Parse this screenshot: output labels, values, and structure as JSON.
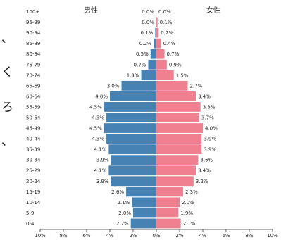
{
  "side_text": [
    "、",
    "く",
    "ろ",
    "、"
  ],
  "chart_data": {
    "type": "bar",
    "orientation": "horizontal",
    "categories": [
      "100+",
      "95-99",
      "90-94",
      "85-89",
      "80-84",
      "75-79",
      "70-74",
      "65-69",
      "60-64",
      "55-59",
      "50-54",
      "45-49",
      "40-44",
      "35-39",
      "30-34",
      "25-29",
      "20-24",
      "15-19",
      "10-14",
      "5-9",
      "0-4"
    ],
    "series": [
      {
        "name": "男性",
        "color": "#4682b4",
        "values": [
          0.0,
          0.0,
          0.1,
          0.2,
          0.5,
          0.7,
          1.3,
          3.0,
          4.0,
          4.5,
          4.3,
          4.5,
          4.3,
          4.1,
          3.9,
          4.1,
          3.9,
          2.6,
          2.1,
          2.0,
          2.2
        ],
        "labels": [
          "0.0%",
          "0.0%",
          "0.1%",
          "0.2%",
          "0.5%",
          "0.7%",
          "1.3%",
          "3.0%",
          "4.0%",
          "4.5%",
          "4.3%",
          "4.5%",
          "4.3%",
          "4.1%",
          "3.9%",
          "4.1%",
          "3.9%",
          "2.6%",
          "2.1%",
          "2.0%",
          "2.2%"
        ]
      },
      {
        "name": "女性",
        "color": "#f08090",
        "values": [
          0.0,
          0.1,
          0.2,
          0.4,
          0.7,
          0.9,
          1.5,
          2.7,
          3.4,
          3.8,
          3.7,
          4.0,
          3.9,
          3.9,
          3.6,
          3.4,
          3.2,
          2.3,
          2.0,
          1.9,
          2.1
        ],
        "labels": [
          "0.0%",
          "0.1%",
          "0.2%",
          "0.4%",
          "0.7%",
          "0.9%",
          "1.5%",
          "2.7%",
          "3.4%",
          "3.8%",
          "3.7%",
          "4.0%",
          "3.9%",
          "3.9%",
          "3.6%",
          "3.4%",
          "3.2%",
          "2.3%",
          "2.0%",
          "1.9%",
          "2.1%"
        ]
      }
    ],
    "x_ticks": [
      "10%",
      "8%",
      "6%",
      "4%",
      "2%",
      "0%",
      "2%",
      "4%",
      "6%",
      "8%",
      "10%"
    ],
    "xlim": [
      -10,
      10
    ],
    "grid": false,
    "legend": "top"
  }
}
